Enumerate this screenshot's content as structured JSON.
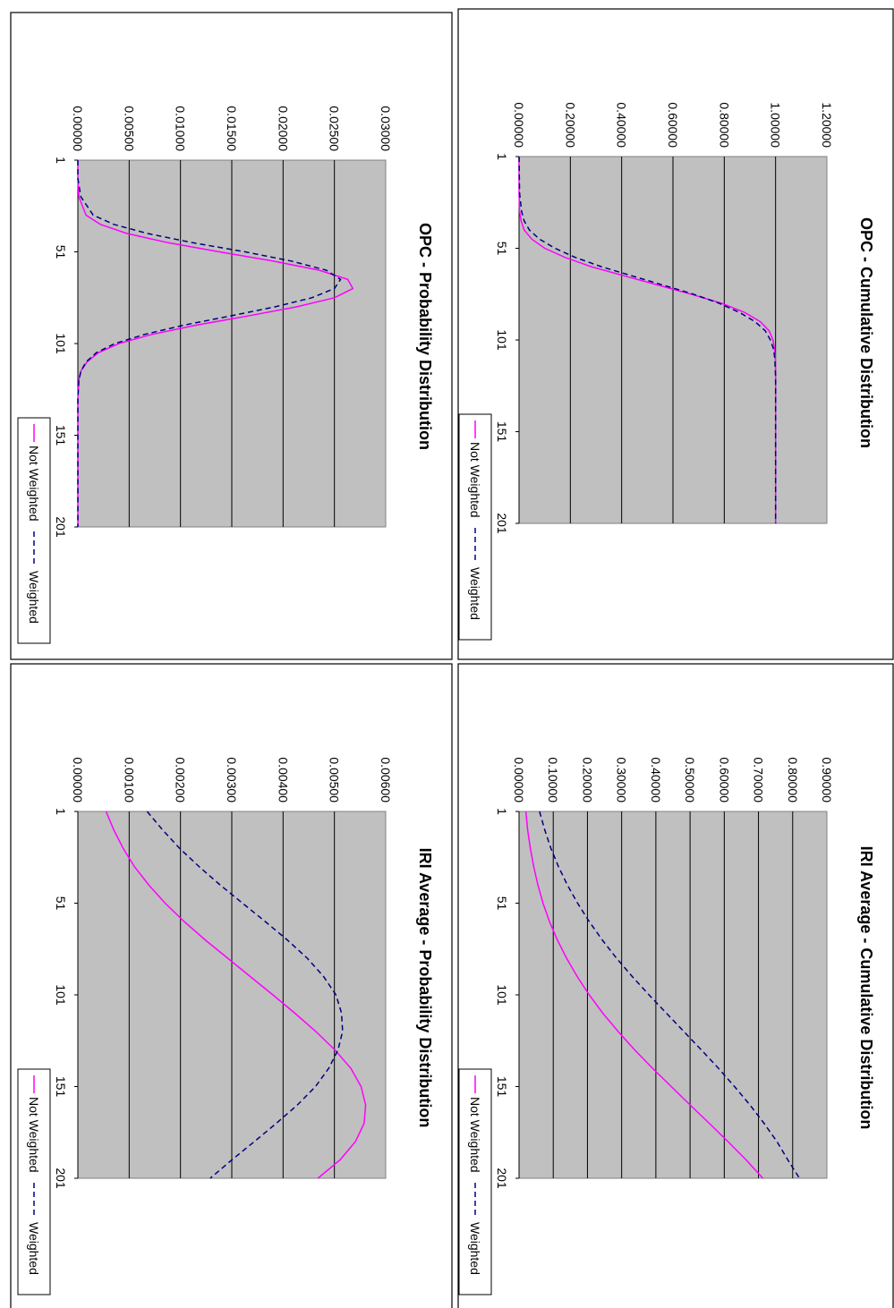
{
  "colors": {
    "not_weighted": "#ff00ff",
    "weighted": "#000080",
    "plot_background": "#c0c0c0"
  },
  "legend": {
    "not_weighted": "Not Weighted",
    "weighted": "Weighted"
  },
  "chart_data": [
    {
      "id": "opc-prob",
      "type": "line",
      "title": "OPC - Probability Distribution",
      "ylim": [
        0,
        0.03
      ],
      "yticks": [
        "0.00000",
        "0.00500",
        "0.01000",
        "0.01500",
        "0.02000",
        "0.02500",
        "0.03000"
      ],
      "xlim": [
        1,
        201
      ],
      "xticks": [
        "1",
        "51",
        "101",
        "151",
        "201"
      ],
      "grid": true,
      "legend_position": "bottom",
      "series": [
        {
          "name": "Not Weighted",
          "x": [
            1,
            11,
            21,
            31,
            36,
            41,
            46,
            51,
            56,
            61,
            66,
            71,
            76,
            81,
            86,
            91,
            96,
            101,
            106,
            111,
            116,
            121,
            131,
            141,
            151,
            161,
            171,
            181,
            191,
            201
          ],
          "y": [
            0,
            0,
            0.0001,
            0.0008,
            0.0022,
            0.0048,
            0.0088,
            0.0138,
            0.019,
            0.0235,
            0.0263,
            0.0268,
            0.025,
            0.0213,
            0.0165,
            0.0115,
            0.0072,
            0.004,
            0.002,
            0.0009,
            0.0003,
            0.0001,
            0,
            0,
            0,
            0,
            0,
            0,
            0,
            0
          ]
        },
        {
          "name": "Weighted",
          "x": [
            1,
            11,
            21,
            31,
            36,
            41,
            46,
            51,
            56,
            61,
            66,
            71,
            76,
            81,
            86,
            91,
            96,
            101,
            106,
            111,
            116,
            121,
            131,
            141,
            151,
            161,
            171,
            181,
            191,
            201
          ],
          "y": [
            0,
            0,
            0.0003,
            0.0015,
            0.0035,
            0.0068,
            0.0112,
            0.0163,
            0.0208,
            0.0242,
            0.0256,
            0.025,
            0.0228,
            0.0192,
            0.0148,
            0.0103,
            0.0065,
            0.0036,
            0.0018,
            0.0008,
            0.0003,
            0.0001,
            0,
            0,
            0,
            0,
            0,
            0,
            0,
            0
          ]
        }
      ]
    },
    {
      "id": "opc-cum",
      "type": "line",
      "title": "OPC - Cumulative Distribution",
      "ylim": [
        0,
        1.2
      ],
      "yticks": [
        "0.00000",
        "0.20000",
        "0.40000",
        "0.60000",
        "0.80000",
        "1.00000",
        "1.20000"
      ],
      "xlim": [
        1,
        201
      ],
      "xticks": [
        "1",
        "51",
        "101",
        "151",
        "201"
      ],
      "grid": true,
      "legend_position": "bottom",
      "series": [
        {
          "name": "Not Weighted",
          "x": [
            1,
            21,
            31,
            36,
            41,
            46,
            51,
            56,
            61,
            66,
            71,
            76,
            81,
            86,
            91,
            96,
            101,
            106,
            111,
            121,
            131,
            151,
            171,
            201
          ],
          "y": [
            0,
            0,
            0.002,
            0.008,
            0.02,
            0.05,
            0.1,
            0.18,
            0.28,
            0.41,
            0.54,
            0.67,
            0.79,
            0.88,
            0.94,
            0.975,
            0.99,
            0.996,
            0.999,
            1.0,
            1.0,
            1.0,
            1.0,
            1.0
          ]
        },
        {
          "name": "Weighted",
          "x": [
            1,
            21,
            31,
            36,
            41,
            46,
            51,
            56,
            61,
            66,
            71,
            76,
            81,
            86,
            91,
            96,
            101,
            106,
            111,
            121,
            131,
            151,
            171,
            201
          ],
          "y": [
            0,
            0.002,
            0.01,
            0.02,
            0.04,
            0.08,
            0.14,
            0.22,
            0.32,
            0.44,
            0.56,
            0.68,
            0.78,
            0.86,
            0.92,
            0.96,
            0.98,
            0.992,
            0.997,
            1.0,
            1.0,
            1.0,
            1.0,
            1.0
          ]
        }
      ]
    },
    {
      "id": "iri-prob",
      "type": "line",
      "title": "IRI Average - Probability Distribution",
      "ylim": [
        0,
        0.006
      ],
      "yticks": [
        "0.00000",
        "0.00100",
        "0.00200",
        "0.00300",
        "0.00400",
        "0.00500",
        "0.00600"
      ],
      "xlim": [
        1,
        201
      ],
      "xticks": [
        "1",
        "51",
        "101",
        "151",
        "201"
      ],
      "grid": true,
      "legend_position": "bottom",
      "series": [
        {
          "name": "Not Weighted",
          "x": [
            1,
            11,
            21,
            31,
            41,
            51,
            61,
            71,
            81,
            91,
            101,
            111,
            121,
            131,
            141,
            151,
            161,
            171,
            181,
            191,
            201
          ],
          "y": [
            0.00055,
            0.0007,
            0.00088,
            0.0011,
            0.00138,
            0.0017,
            0.00207,
            0.00248,
            0.00292,
            0.00336,
            0.0038,
            0.00423,
            0.00464,
            0.00501,
            0.00532,
            0.00552,
            0.00561,
            0.00558,
            0.00541,
            0.00511,
            0.00468
          ]
        },
        {
          "name": "Weighted",
          "x": [
            1,
            11,
            21,
            31,
            41,
            51,
            61,
            71,
            81,
            91,
            101,
            111,
            121,
            131,
            141,
            151,
            161,
            171,
            181,
            191,
            201
          ],
          "y": [
            0.00135,
            0.00165,
            0.00198,
            0.00236,
            0.00277,
            0.00321,
            0.00365,
            0.00408,
            0.00447,
            0.00479,
            0.00503,
            0.00514,
            0.00516,
            0.00507,
            0.00489,
            0.00463,
            0.00428,
            0.00387,
            0.00344,
            0.003,
            0.00258
          ]
        }
      ]
    },
    {
      "id": "iri-cum",
      "type": "line",
      "title": "IRI Average - Cumulative Distribution",
      "ylim": [
        0,
        0.9
      ],
      "yticks": [
        "0.00000",
        "0.10000",
        "0.20000",
        "0.30000",
        "0.40000",
        "0.50000",
        "0.60000",
        "0.70000",
        "0.80000",
        "0.90000"
      ],
      "xlim": [
        1,
        201
      ],
      "xticks": [
        "1",
        "51",
        "101",
        "151",
        "201"
      ],
      "grid": true,
      "legend_position": "bottom",
      "series": [
        {
          "name": "Not Weighted",
          "x": [
            1,
            11,
            21,
            31,
            41,
            51,
            61,
            71,
            81,
            91,
            101,
            111,
            121,
            131,
            141,
            151,
            161,
            171,
            181,
            191,
            201
          ],
          "y": [
            0.02,
            0.025,
            0.033,
            0.043,
            0.055,
            0.07,
            0.089,
            0.112,
            0.139,
            0.17,
            0.205,
            0.245,
            0.29,
            0.338,
            0.39,
            0.445,
            0.5,
            0.556,
            0.611,
            0.664,
            0.713
          ]
        },
        {
          "name": "Weighted",
          "x": [
            1,
            11,
            21,
            31,
            41,
            51,
            61,
            71,
            81,
            91,
            101,
            111,
            121,
            131,
            141,
            151,
            161,
            171,
            181,
            191,
            201
          ],
          "y": [
            0.06,
            0.075,
            0.093,
            0.115,
            0.141,
            0.171,
            0.205,
            0.243,
            0.285,
            0.331,
            0.38,
            0.431,
            0.482,
            0.533,
            0.583,
            0.63,
            0.675,
            0.716,
            0.754,
            0.786,
            0.82
          ]
        }
      ]
    }
  ]
}
